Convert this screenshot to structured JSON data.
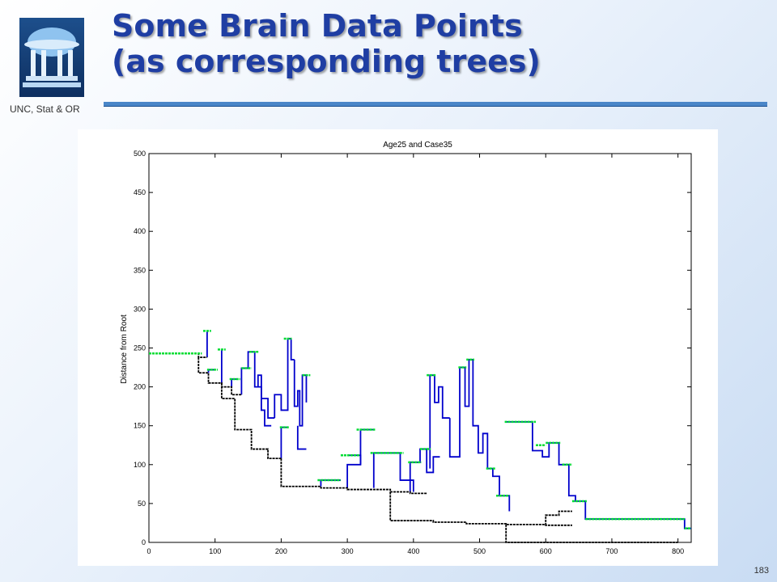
{
  "header": {
    "title_line1": "Some Brain Data Points",
    "title_line2": "(as corresponding trees)",
    "logo_caption": "UNC, Stat & OR",
    "logo_icon": "old-well-icon",
    "accent_color": "#1f3ea3",
    "rule_color": "#4a86c8"
  },
  "slide_number": "183",
  "chart_data": {
    "type": "line",
    "title": "Age25 and Case35",
    "xlabel": "",
    "ylabel": "Distance from Root",
    "xlim": [
      0,
      820
    ],
    "ylim": [
      0,
      500
    ],
    "xticks": [
      0,
      100,
      200,
      300,
      400,
      500,
      600,
      700,
      800
    ],
    "yticks": [
      0,
      50,
      100,
      150,
      200,
      250,
      300,
      350,
      400,
      450,
      500
    ],
    "colors": {
      "trunk": "#000000",
      "branch": "#0000cc",
      "leaf": "#00dd33"
    },
    "trunk_segments": [
      [
        [
          0,
          243
        ],
        [
          75,
          243
        ],
        [
          75,
          238
        ],
        [
          88,
          238
        ]
      ],
      [
        [
          75,
          238
        ],
        [
          75,
          218
        ],
        [
          90,
          218
        ],
        [
          90,
          205
        ],
        [
          110,
          205
        ],
        [
          110,
          200
        ],
        [
          125,
          200
        ],
        [
          125,
          190
        ],
        [
          140,
          190
        ]
      ],
      [
        [
          110,
          205
        ],
        [
          110,
          185
        ],
        [
          130,
          185
        ],
        [
          130,
          145
        ],
        [
          155,
          145
        ],
        [
          155,
          120
        ],
        [
          180,
          120
        ],
        [
          180,
          108
        ],
        [
          200,
          108
        ]
      ],
      [
        [
          200,
          108
        ],
        [
          200,
          72
        ],
        [
          260,
          72
        ],
        [
          260,
          70
        ],
        [
          300,
          70
        ],
        [
          300,
          68
        ],
        [
          365,
          68
        ],
        [
          365,
          65
        ],
        [
          395,
          65
        ],
        [
          395,
          63
        ],
        [
          420,
          63
        ]
      ],
      [
        [
          365,
          65
        ],
        [
          365,
          28
        ],
        [
          430,
          28
        ],
        [
          430,
          26
        ],
        [
          480,
          26
        ],
        [
          480,
          24
        ],
        [
          540,
          24
        ],
        [
          540,
          23
        ],
        [
          600,
          23
        ],
        [
          600,
          22
        ],
        [
          640,
          22
        ]
      ],
      [
        [
          540,
          23
        ],
        [
          540,
          0
        ],
        [
          800,
          0
        ]
      ],
      [
        [
          600,
          22
        ],
        [
          600,
          35
        ],
        [
          620,
          35
        ],
        [
          620,
          40
        ],
        [
          640,
          40
        ]
      ]
    ],
    "branch_segments": [
      [
        [
          88,
          238
        ],
        [
          88,
          272
        ]
      ],
      [
        [
          90,
          218
        ],
        [
          90,
          222
        ],
        [
          100,
          222
        ]
      ],
      [
        [
          110,
          205
        ],
        [
          110,
          248
        ]
      ],
      [
        [
          125,
          200
        ],
        [
          125,
          210
        ],
        [
          135,
          210
        ]
      ],
      [
        [
          140,
          190
        ],
        [
          140,
          224
        ],
        [
          150,
          224
        ]
      ],
      [
        [
          150,
          224
        ],
        [
          150,
          245
        ],
        [
          160,
          245
        ],
        [
          160,
          200
        ],
        [
          170,
          200
        ],
        [
          170,
          170
        ],
        [
          175,
          170
        ],
        [
          175,
          150
        ],
        [
          185,
          150
        ]
      ],
      [
        [
          165,
          200
        ],
        [
          165,
          215
        ],
        [
          170,
          215
        ],
        [
          170,
          185
        ],
        [
          180,
          185
        ],
        [
          180,
          160
        ],
        [
          190,
          160
        ]
      ],
      [
        [
          190,
          160
        ],
        [
          190,
          190
        ],
        [
          200,
          190
        ],
        [
          200,
          170
        ],
        [
          210,
          170
        ],
        [
          210,
          262
        ],
        [
          215,
          262
        ],
        [
          215,
          235
        ],
        [
          220,
          235
        ]
      ],
      [
        [
          220,
          235
        ],
        [
          220,
          175
        ],
        [
          225,
          175
        ],
        [
          225,
          195
        ],
        [
          228,
          195
        ],
        [
          228,
          150
        ],
        [
          232,
          150
        ],
        [
          232,
          215
        ],
        [
          238,
          215
        ],
        [
          238,
          180
        ]
      ],
      [
        [
          200,
          108
        ],
        [
          200,
          148
        ],
        [
          210,
          148
        ]
      ],
      [
        [
          225,
          150
        ],
        [
          225,
          120
        ],
        [
          238,
          120
        ]
      ],
      [
        [
          260,
          72
        ],
        [
          260,
          80
        ],
        [
          290,
          80
        ]
      ],
      [
        [
          300,
          70
        ],
        [
          300,
          100
        ],
        [
          320,
          100
        ],
        [
          320,
          112
        ],
        [
          300,
          112
        ]
      ],
      [
        [
          320,
          100
        ],
        [
          320,
          145
        ],
        [
          340,
          145
        ]
      ],
      [
        [
          340,
          70
        ],
        [
          340,
          115
        ],
        [
          380,
          115
        ]
      ],
      [
        [
          380,
          115
        ],
        [
          380,
          80
        ],
        [
          400,
          80
        ],
        [
          400,
          65
        ]
      ],
      [
        [
          395,
          65
        ],
        [
          395,
          103
        ],
        [
          410,
          103
        ],
        [
          410,
          120
        ],
        [
          420,
          120
        ],
        [
          420,
          90
        ],
        [
          430,
          90
        ],
        [
          430,
          110
        ],
        [
          440,
          110
        ]
      ],
      [
        [
          425,
          95
        ],
        [
          425,
          215
        ],
        [
          432,
          215
        ],
        [
          432,
          180
        ],
        [
          438,
          180
        ],
        [
          438,
          200
        ],
        [
          444,
          200
        ],
        [
          444,
          160
        ],
        [
          455,
          160
        ]
      ],
      [
        [
          455,
          160
        ],
        [
          455,
          110
        ],
        [
          470,
          110
        ],
        [
          470,
          225
        ],
        [
          478,
          225
        ],
        [
          478,
          175
        ],
        [
          484,
          175
        ],
        [
          484,
          235
        ],
        [
          490,
          235
        ]
      ],
      [
        [
          490,
          235
        ],
        [
          490,
          150
        ],
        [
          498,
          150
        ],
        [
          498,
          115
        ],
        [
          505,
          115
        ],
        [
          505,
          140
        ],
        [
          512,
          140
        ],
        [
          512,
          95
        ],
        [
          520,
          95
        ]
      ],
      [
        [
          520,
          95
        ],
        [
          520,
          85
        ],
        [
          530,
          85
        ],
        [
          530,
          60
        ],
        [
          545,
          60
        ],
        [
          545,
          40
        ]
      ],
      [
        [
          540,
          155
        ],
        [
          580,
          155
        ],
        [
          580,
          118
        ],
        [
          595,
          118
        ],
        [
          595,
          110
        ],
        [
          605,
          110
        ],
        [
          605,
          128
        ],
        [
          620,
          128
        ]
      ],
      [
        [
          620,
          128
        ],
        [
          620,
          100
        ],
        [
          635,
          100
        ],
        [
          635,
          60
        ],
        [
          645,
          60
        ],
        [
          645,
          53
        ],
        [
          660,
          53
        ]
      ],
      [
        [
          660,
          53
        ],
        [
          660,
          30
        ],
        [
          810,
          30
        ],
        [
          810,
          18
        ],
        [
          820,
          18
        ]
      ]
    ],
    "leaf_levels": [
      {
        "x": [
          0,
          80
        ],
        "y": 243
      },
      {
        "x": [
          82,
          94
        ],
        "y": 272
      },
      {
        "x": [
          88,
          104
        ],
        "y": 222
      },
      {
        "x": [
          104,
          116
        ],
        "y": 248
      },
      {
        "x": [
          122,
          138
        ],
        "y": 210
      },
      {
        "x": [
          140,
          155
        ],
        "y": 224
      },
      {
        "x": [
          152,
          166
        ],
        "y": 245
      },
      {
        "x": [
          204,
          216
        ],
        "y": 262
      },
      {
        "x": [
          232,
          244
        ],
        "y": 215
      },
      {
        "x": [
          198,
          212
        ],
        "y": 148
      },
      {
        "x": [
          255,
          290
        ],
        "y": 80
      },
      {
        "x": [
          290,
          318
        ],
        "y": 112
      },
      {
        "x": [
          314,
          342
        ],
        "y": 145
      },
      {
        "x": [
          335,
          385
        ],
        "y": 115
      },
      {
        "x": [
          392,
          412
        ],
        "y": 103
      },
      {
        "x": [
          410,
          426
        ],
        "y": 120
      },
      {
        "x": [
          420,
          434
        ],
        "y": 215
      },
      {
        "x": [
          468,
          480
        ],
        "y": 225
      },
      {
        "x": [
          480,
          492
        ],
        "y": 235
      },
      {
        "x": [
          510,
          524
        ],
        "y": 95
      },
      {
        "x": [
          525,
          545
        ],
        "y": 60
      },
      {
        "x": [
          538,
          585
        ],
        "y": 155
      },
      {
        "x": [
          585,
          600
        ],
        "y": 125
      },
      {
        "x": [
          600,
          622
        ],
        "y": 128
      },
      {
        "x": [
          625,
          640
        ],
        "y": 100
      },
      {
        "x": [
          640,
          662
        ],
        "y": 53
      },
      {
        "x": [
          660,
          810
        ],
        "y": 30
      },
      {
        "x": [
          810,
          820
        ],
        "y": 18
      }
    ]
  }
}
